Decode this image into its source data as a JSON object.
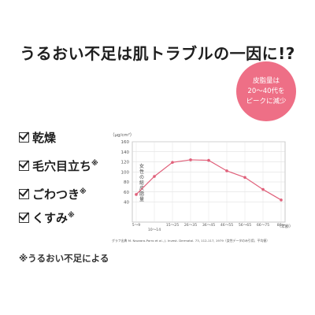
{
  "title": "うるおい不足は肌トラブルの一因に!?",
  "badge": {
    "line1": "皮脂量は",
    "line2": "20～40代を",
    "line3": "ピークに減少",
    "color": "#ee6f86"
  },
  "checklist": [
    {
      "label": "乾燥",
      "mark": ""
    },
    {
      "label": "毛穴目立ち",
      "mark": "※"
    },
    {
      "label": "ごわつき",
      "mark": "※"
    },
    {
      "label": "くすみ",
      "mark": "※"
    }
  ],
  "footnote": "※うるおい不足による",
  "chart_data": {
    "type": "line",
    "ylabel": "女性の総皮脂量",
    "yunit": "（μg/cm²）",
    "xunit": "（年齢）",
    "ylim": [
      0,
      160
    ],
    "yticks": [
      40,
      60,
      80,
      100,
      120,
      140,
      160
    ],
    "grid": true,
    "categories": [
      "5～9",
      "10～14",
      "15～25",
      "26～35",
      "36～45",
      "46～55",
      "56～65",
      "66～75",
      "80～"
    ],
    "values": [
      55,
      91,
      119,
      124,
      123,
      102,
      89,
      65,
      44
    ],
    "series_color": "#e0607a",
    "caption": "グラフ出典 M. Nazzaro-Porro et al., J. Invest. Dermatol. 73, 112-117, 1979（女性データのみ引用、平均値）"
  }
}
